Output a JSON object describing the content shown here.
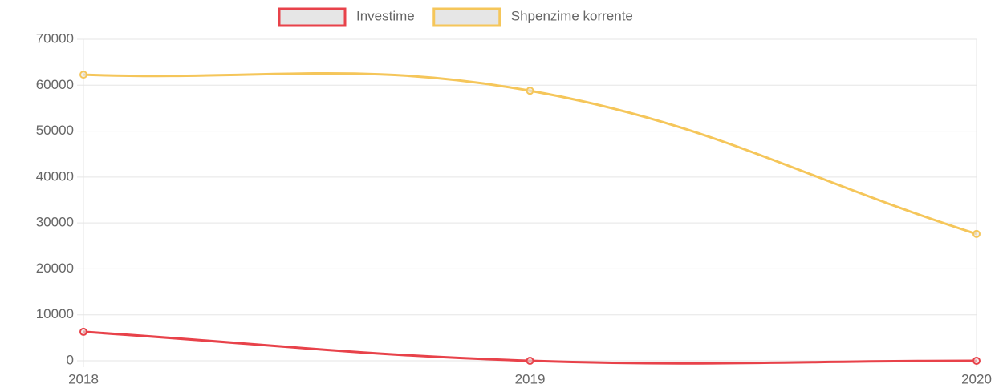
{
  "chart_data": {
    "type": "line",
    "categories": [
      "2018",
      "2019",
      "2020"
    ],
    "series": [
      {
        "name": "Investime",
        "color": "#e8424a",
        "values": [
          6300,
          0,
          0
        ]
      },
      {
        "name": "Shpenzime korrente",
        "color": "#f5c65a",
        "values": [
          62300,
          58800,
          27600
        ]
      }
    ],
    "ylim": [
      0,
      70000
    ],
    "yticks": [
      0,
      10000,
      20000,
      30000,
      40000,
      50000,
      60000,
      70000
    ],
    "grid": true,
    "legend": "top"
  }
}
